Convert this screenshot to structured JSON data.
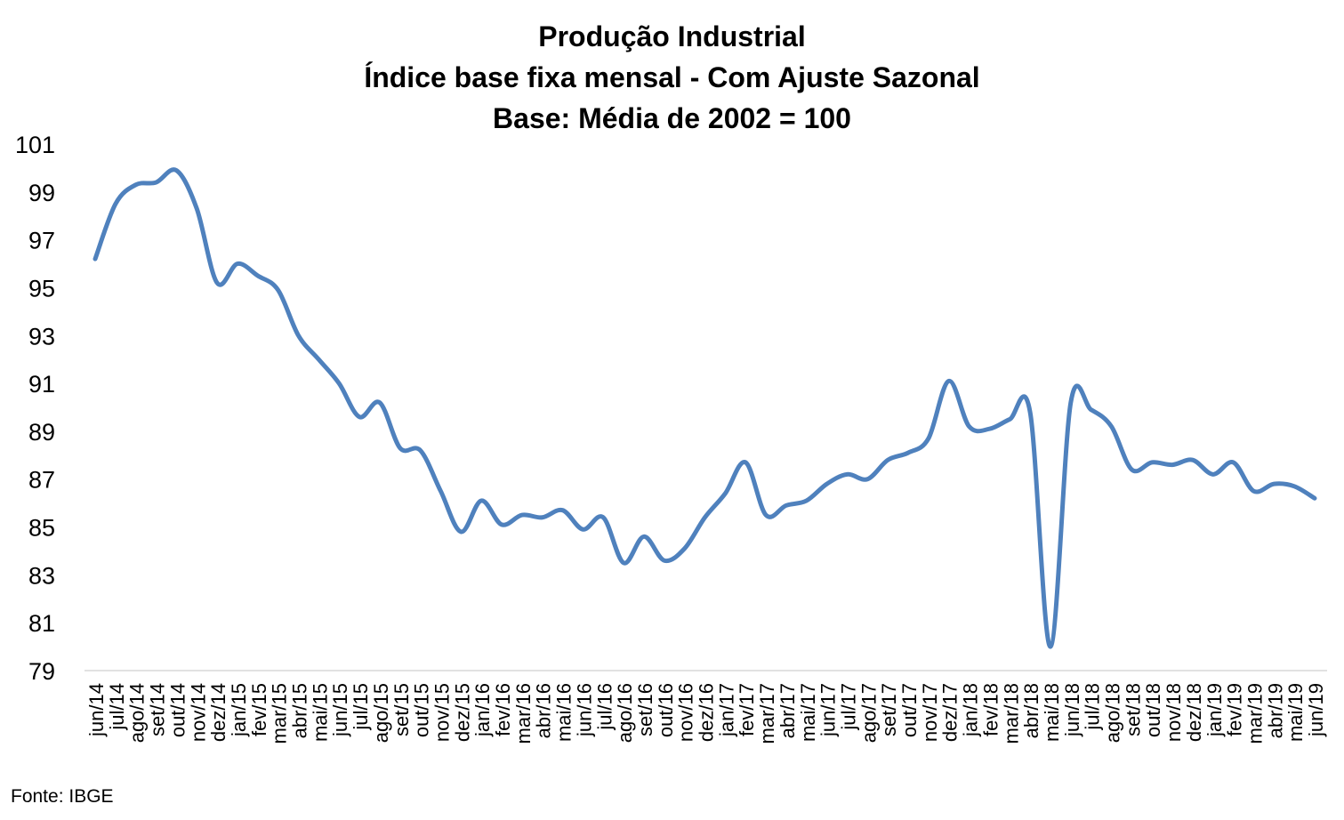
{
  "chart_data": {
    "type": "line",
    "title_lines": [
      "Produção Industrial",
      "Índice base fixa mensal - Com Ajuste Sazonal",
      "Base: Média de 2002 = 100"
    ],
    "xlabel": "",
    "ylabel": "",
    "ylim": [
      79,
      101
    ],
    "yticks": [
      101,
      99,
      97,
      95,
      93,
      91,
      89,
      87,
      85,
      83,
      81,
      79
    ],
    "grid": false,
    "legend": "none",
    "line_color": "#4f81bd",
    "categories": [
      "jun/14",
      "jul/14",
      "ago/14",
      "set/14",
      "out/14",
      "nov/14",
      "dez/14",
      "jan/15",
      "fev/15",
      "mar/15",
      "abr/15",
      "mai/15",
      "jun/15",
      "jul/15",
      "ago/15",
      "set/15",
      "out/15",
      "nov/15",
      "dez/15",
      "jan/16",
      "fev/16",
      "mar/16",
      "abr/16",
      "mai/16",
      "jun/16",
      "jul/16",
      "ago/16",
      "set/16",
      "out/16",
      "nov/16",
      "dez/16",
      "jan/17",
      "fev/17",
      "mar/17",
      "abr/17",
      "mai/17",
      "jun/17",
      "jul/17",
      "ago/17",
      "set/17",
      "out/17",
      "nov/17",
      "dez/17",
      "jan/18",
      "fev/18",
      "mar/18",
      "abr/18",
      "mai/18",
      "jun/18",
      "jul/18",
      "ago/18",
      "set/18",
      "out/18",
      "nov/18",
      "dez/18",
      "jan/19",
      "fev/19",
      "mar/19",
      "abr/19",
      "mai/19",
      "jun/19"
    ],
    "series": [
      {
        "values": [
          96.2,
          98.5,
          99.3,
          99.4,
          99.9,
          98.3,
          95.2,
          96.0,
          95.5,
          94.9,
          93.0,
          92.0,
          91.0,
          89.6,
          90.2,
          88.3,
          88.2,
          86.5,
          84.8,
          86.1,
          85.1,
          85.5,
          85.4,
          85.7,
          84.9,
          85.4,
          83.5,
          84.6,
          83.6,
          84.1,
          85.4,
          86.4,
          87.7,
          85.5,
          85.9,
          86.1,
          86.8,
          87.2,
          87.0,
          87.8,
          88.1,
          88.7,
          91.1,
          89.2,
          89.1,
          89.5,
          89.8,
          80.0,
          90.2,
          89.9,
          89.2,
          87.4,
          87.7,
          87.6,
          87.8,
          87.2,
          87.7,
          86.5,
          86.8,
          86.7,
          86.2
        ]
      }
    ]
  },
  "source": "Fonte: IBGE"
}
